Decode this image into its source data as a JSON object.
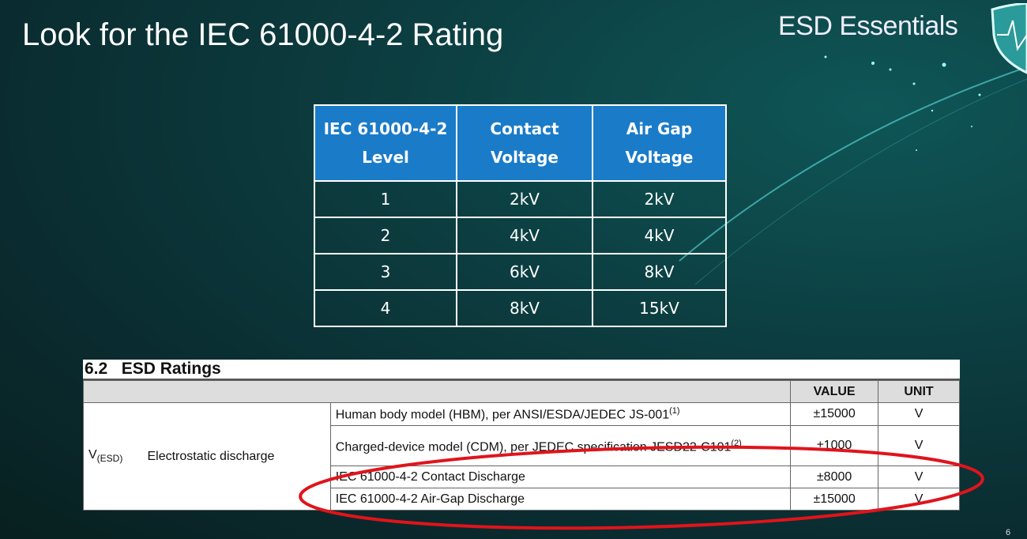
{
  "slide": {
    "title": "Look for the IEC 61000-4-2 Rating",
    "brand": "ESD Essentials",
    "page_number": "6",
    "accent": "#1a7bc9",
    "highlight": "#e0141b"
  },
  "iec_table": {
    "headers": [
      [
        "IEC 61000-4-2",
        "Level"
      ],
      [
        "Contact",
        "Voltage"
      ],
      [
        "Air Gap",
        "Voltage"
      ]
    ],
    "rows": [
      [
        "1",
        "2kV",
        "2kV"
      ],
      [
        "2",
        "4kV",
        "4kV"
      ],
      [
        "3",
        "6kV",
        "8kV"
      ],
      [
        "4",
        "8kV",
        "15kV"
      ]
    ]
  },
  "esd_table": {
    "caption": "6.2   ESD Ratings",
    "value_header": "VALUE",
    "unit_header": "UNIT",
    "symbol": "V",
    "symbol_sub": "(ESD)",
    "parameter": "Electrostatic discharge",
    "rows": [
      {
        "cond": "Human body model (HBM), per ANSI/ESDA/JEDEC JS-001",
        "sup": "(1)",
        "value": "±15000",
        "unit": "V"
      },
      {
        "cond": "Charged-device model (CDM), per JEDEC specification JESD22-C101",
        "sup": "(2)",
        "value": "±1000",
        "unit": "V"
      },
      {
        "cond": "IEC 61000-4-2 Contact Discharge",
        "sup": "",
        "value": "±8000",
        "unit": "V"
      },
      {
        "cond": "IEC 61000-4-2 Air-Gap Discharge",
        "sup": "",
        "value": "±15000",
        "unit": "V"
      }
    ]
  }
}
